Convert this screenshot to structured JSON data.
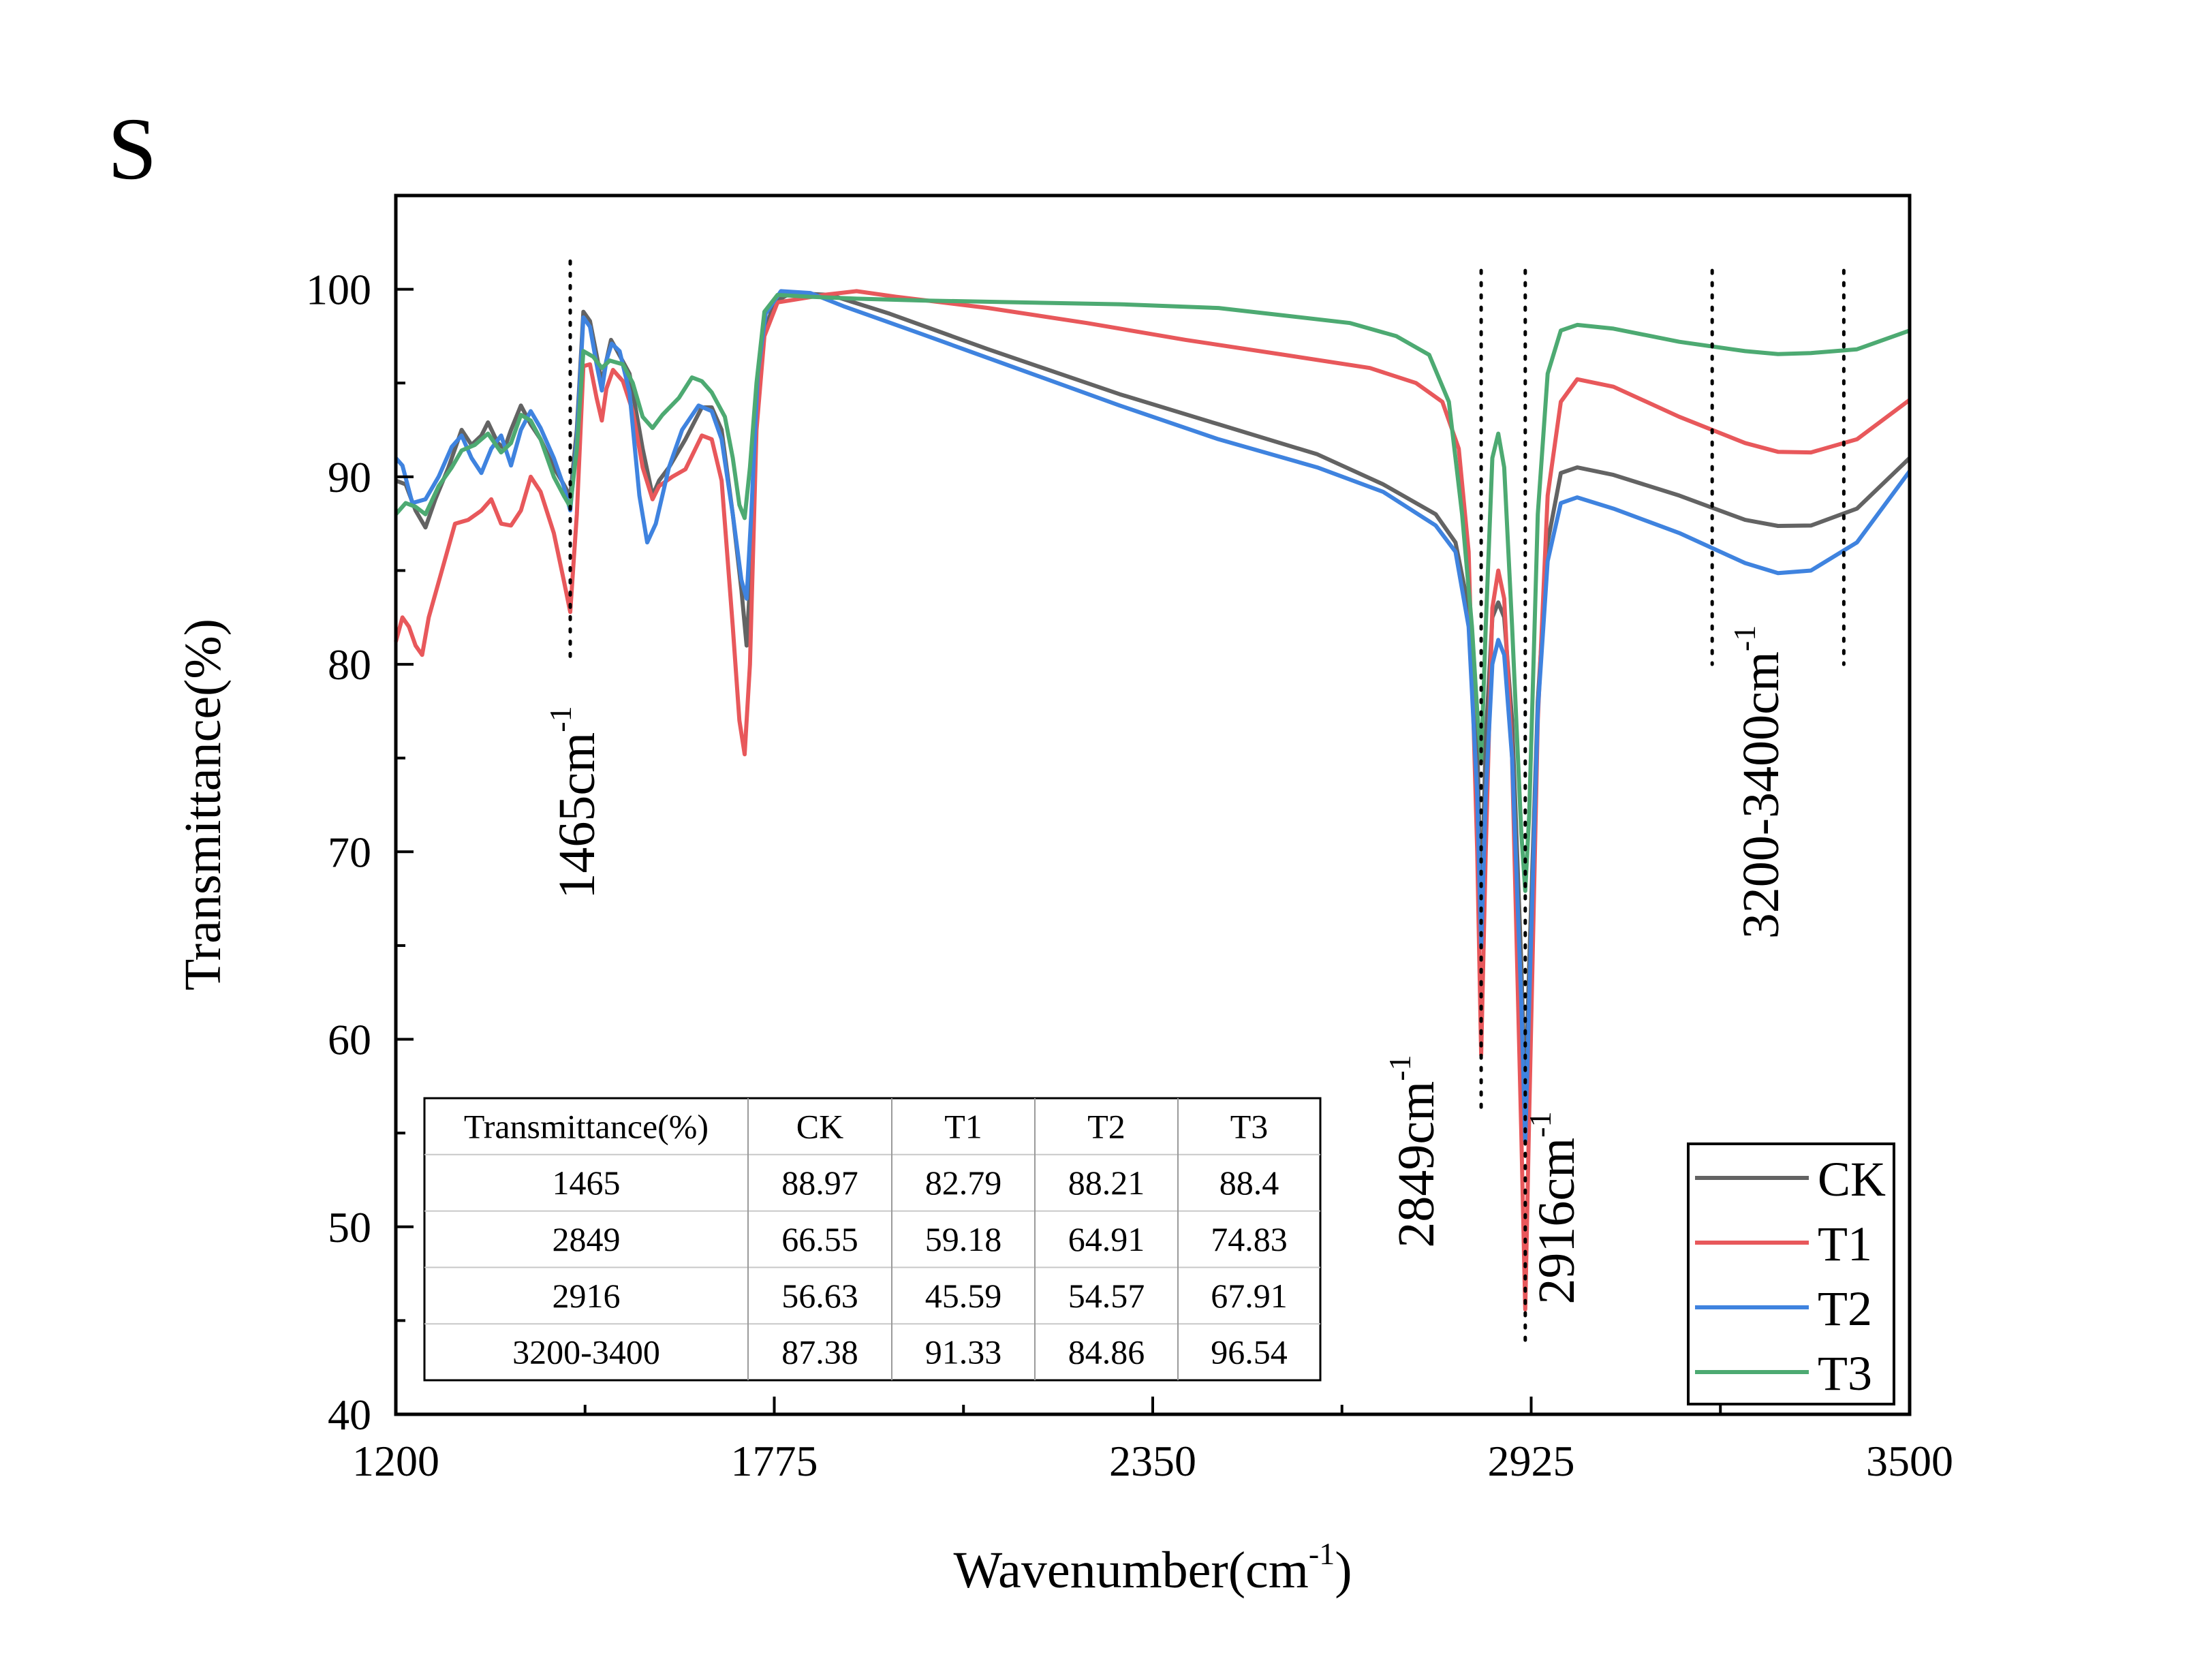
{
  "panel_label": "S",
  "chart_data": {
    "type": "line",
    "xlabel": "Wavenumber(cm",
    "xlabel_sup": "-1",
    "xlabel_end": ")",
    "ylabel": "Transmittance(%)",
    "xlim": [
      1200,
      3500
    ],
    "ylim": [
      40,
      105
    ],
    "x_ticks": [
      1200,
      1775,
      2350,
      2925,
      3500
    ],
    "y_ticks": [
      40,
      50,
      60,
      70,
      80,
      90,
      100
    ],
    "grid": false,
    "legend_position": "bottom-right",
    "series": [
      {
        "name": "CK",
        "color": "#636363",
        "points": [
          [
            1200,
            89.8
          ],
          [
            1215,
            89.6
          ],
          [
            1230,
            88.2
          ],
          [
            1245,
            87.3
          ],
          [
            1260,
            88.8
          ],
          [
            1280,
            90.5
          ],
          [
            1300,
            92.5
          ],
          [
            1315,
            91.7
          ],
          [
            1330,
            92.2
          ],
          [
            1340,
            92.9
          ],
          [
            1355,
            91.8
          ],
          [
            1365,
            91.5
          ],
          [
            1375,
            92.5
          ],
          [
            1390,
            93.8
          ],
          [
            1405,
            92.8
          ],
          [
            1420,
            92.0
          ],
          [
            1440,
            90.5
          ],
          [
            1455,
            89.6
          ],
          [
            1465,
            88.97
          ],
          [
            1475,
            92.5
          ],
          [
            1485,
            98.8
          ],
          [
            1495,
            98.3
          ],
          [
            1505,
            96.5
          ],
          [
            1513,
            95.0
          ],
          [
            1520,
            96.2
          ],
          [
            1527,
            97.3
          ],
          [
            1535,
            96.8
          ],
          [
            1555,
            95.5
          ],
          [
            1575,
            91.5
          ],
          [
            1590,
            89.0
          ],
          [
            1600,
            89.8
          ],
          [
            1615,
            90.5
          ],
          [
            1640,
            92.0
          ],
          [
            1665,
            93.7
          ],
          [
            1680,
            93.7
          ],
          [
            1695,
            92.5
          ],
          [
            1712,
            88.0
          ],
          [
            1725,
            84.0
          ],
          [
            1733,
            81.0
          ],
          [
            1740,
            85.5
          ],
          [
            1748,
            93.0
          ],
          [
            1758,
            97.5
          ],
          [
            1775,
            99.3
          ],
          [
            1800,
            99.8
          ],
          [
            1860,
            99.7
          ],
          [
            1950,
            98.7
          ],
          [
            2100,
            96.8
          ],
          [
            2300,
            94.4
          ],
          [
            2450,
            92.8
          ],
          [
            2600,
            91.2
          ],
          [
            2700,
            89.6
          ],
          [
            2780,
            88.0
          ],
          [
            2810,
            86.5
          ],
          [
            2830,
            83.0
          ],
          [
            2843,
            76.0
          ],
          [
            2849,
            66.55
          ],
          [
            2856,
            76.0
          ],
          [
            2866,
            82.5
          ],
          [
            2875,
            83.3
          ],
          [
            2884,
            82.5
          ],
          [
            2896,
            77.0
          ],
          [
            2910,
            64.0
          ],
          [
            2916,
            56.63
          ],
          [
            2922,
            64.0
          ],
          [
            2935,
            78.0
          ],
          [
            2950,
            86.5
          ],
          [
            2970,
            90.2
          ],
          [
            2995,
            90.5
          ],
          [
            3050,
            90.1
          ],
          [
            3150,
            89.0
          ],
          [
            3250,
            87.7
          ],
          [
            3300,
            87.38
          ],
          [
            3350,
            87.4
          ],
          [
            3420,
            88.3
          ],
          [
            3500,
            91.0
          ]
        ]
      },
      {
        "name": "T1",
        "color": "#e8585b",
        "points": [
          [
            1200,
            81.2
          ],
          [
            1210,
            82.5
          ],
          [
            1220,
            82.0
          ],
          [
            1230,
            81.0
          ],
          [
            1240,
            80.5
          ],
          [
            1250,
            82.5
          ],
          [
            1270,
            85.0
          ],
          [
            1290,
            87.5
          ],
          [
            1310,
            87.7
          ],
          [
            1330,
            88.2
          ],
          [
            1345,
            88.8
          ],
          [
            1360,
            87.5
          ],
          [
            1375,
            87.4
          ],
          [
            1390,
            88.2
          ],
          [
            1405,
            90.0
          ],
          [
            1420,
            89.2
          ],
          [
            1440,
            87.0
          ],
          [
            1455,
            84.5
          ],
          [
            1465,
            82.79
          ],
          [
            1475,
            88.0
          ],
          [
            1485,
            95.9
          ],
          [
            1495,
            96.0
          ],
          [
            1505,
            94.2
          ],
          [
            1513,
            93.0
          ],
          [
            1520,
            94.7
          ],
          [
            1530,
            95.7
          ],
          [
            1545,
            95.1
          ],
          [
            1560,
            93.5
          ],
          [
            1575,
            90.5
          ],
          [
            1590,
            88.8
          ],
          [
            1600,
            89.5
          ],
          [
            1620,
            90.0
          ],
          [
            1640,
            90.4
          ],
          [
            1665,
            92.2
          ],
          [
            1680,
            92.0
          ],
          [
            1695,
            89.8
          ],
          [
            1712,
            82.0
          ],
          [
            1722,
            77.0
          ],
          [
            1730,
            75.2
          ],
          [
            1738,
            80.0
          ],
          [
            1748,
            92.5
          ],
          [
            1760,
            97.5
          ],
          [
            1780,
            99.3
          ],
          [
            1850,
            99.7
          ],
          [
            1900,
            99.9
          ],
          [
            1960,
            99.6
          ],
          [
            2100,
            99.0
          ],
          [
            2250,
            98.2
          ],
          [
            2400,
            97.3
          ],
          [
            2550,
            96.5
          ],
          [
            2680,
            95.8
          ],
          [
            2750,
            95.0
          ],
          [
            2790,
            94.0
          ],
          [
            2815,
            91.5
          ],
          [
            2830,
            86.0
          ],
          [
            2843,
            70.0
          ],
          [
            2849,
            59.18
          ],
          [
            2856,
            70.0
          ],
          [
            2866,
            83.0
          ],
          [
            2875,
            85.0
          ],
          [
            2884,
            83.5
          ],
          [
            2896,
            75.0
          ],
          [
            2910,
            55.0
          ],
          [
            2916,
            45.59
          ],
          [
            2922,
            56.0
          ],
          [
            2935,
            77.0
          ],
          [
            2950,
            89.0
          ],
          [
            2970,
            94.0
          ],
          [
            2995,
            95.2
          ],
          [
            3050,
            94.8
          ],
          [
            3150,
            93.2
          ],
          [
            3250,
            91.8
          ],
          [
            3300,
            91.33
          ],
          [
            3350,
            91.3
          ],
          [
            3420,
            92.0
          ],
          [
            3500,
            94.1
          ]
        ]
      },
      {
        "name": "T2",
        "color": "#3f83df",
        "points": [
          [
            1200,
            91.0
          ],
          [
            1210,
            90.6
          ],
          [
            1225,
            88.6
          ],
          [
            1245,
            88.8
          ],
          [
            1265,
            90.0
          ],
          [
            1285,
            91.6
          ],
          [
            1300,
            92.2
          ],
          [
            1315,
            91.0
          ],
          [
            1330,
            90.2
          ],
          [
            1345,
            91.5
          ],
          [
            1360,
            92.2
          ],
          [
            1375,
            90.6
          ],
          [
            1390,
            92.5
          ],
          [
            1405,
            93.5
          ],
          [
            1420,
            92.6
          ],
          [
            1440,
            91.0
          ],
          [
            1455,
            89.5
          ],
          [
            1465,
            88.21
          ],
          [
            1475,
            92.0
          ],
          [
            1485,
            98.5
          ],
          [
            1495,
            98.0
          ],
          [
            1505,
            96.0
          ],
          [
            1513,
            94.6
          ],
          [
            1520,
            96.2
          ],
          [
            1528,
            97.1
          ],
          [
            1540,
            96.7
          ],
          [
            1555,
            94.5
          ],
          [
            1570,
            89.0
          ],
          [
            1582,
            86.5
          ],
          [
            1595,
            87.5
          ],
          [
            1615,
            90.5
          ],
          [
            1635,
            92.5
          ],
          [
            1660,
            93.8
          ],
          [
            1680,
            93.5
          ],
          [
            1695,
            92.0
          ],
          [
            1712,
            88.0
          ],
          [
            1725,
            84.5
          ],
          [
            1733,
            83.5
          ],
          [
            1740,
            88.0
          ],
          [
            1750,
            95.5
          ],
          [
            1762,
            98.7
          ],
          [
            1785,
            99.9
          ],
          [
            1830,
            99.8
          ],
          [
            1880,
            99.1
          ],
          [
            2000,
            97.6
          ],
          [
            2150,
            95.7
          ],
          [
            2300,
            93.8
          ],
          [
            2450,
            92.0
          ],
          [
            2600,
            90.5
          ],
          [
            2700,
            89.2
          ],
          [
            2780,
            87.4
          ],
          [
            2810,
            86.0
          ],
          [
            2830,
            82.0
          ],
          [
            2843,
            73.0
          ],
          [
            2849,
            64.91
          ],
          [
            2856,
            73.0
          ],
          [
            2866,
            80.0
          ],
          [
            2875,
            81.3
          ],
          [
            2884,
            80.5
          ],
          [
            2896,
            75.0
          ],
          [
            2910,
            62.0
          ],
          [
            2916,
            54.57
          ],
          [
            2922,
            62.0
          ],
          [
            2935,
            77.5
          ],
          [
            2950,
            85.5
          ],
          [
            2970,
            88.6
          ],
          [
            2995,
            88.9
          ],
          [
            3050,
            88.3
          ],
          [
            3150,
            87.0
          ],
          [
            3250,
            85.4
          ],
          [
            3300,
            84.86
          ],
          [
            3350,
            85.0
          ],
          [
            3420,
            86.5
          ],
          [
            3500,
            90.3
          ]
        ]
      },
      {
        "name": "T3",
        "color": "#4daa72",
        "points": [
          [
            1200,
            88.0
          ],
          [
            1215,
            88.6
          ],
          [
            1230,
            88.4
          ],
          [
            1245,
            88.0
          ],
          [
            1265,
            89.5
          ],
          [
            1285,
            90.5
          ],
          [
            1300,
            91.4
          ],
          [
            1320,
            91.7
          ],
          [
            1340,
            92.3
          ],
          [
            1360,
            91.3
          ],
          [
            1375,
            91.8
          ],
          [
            1390,
            93.3
          ],
          [
            1405,
            93.0
          ],
          [
            1420,
            92.0
          ],
          [
            1440,
            90.0
          ],
          [
            1455,
            89.0
          ],
          [
            1465,
            88.4
          ],
          [
            1475,
            91.5
          ],
          [
            1485,
            96.7
          ],
          [
            1500,
            96.4
          ],
          [
            1513,
            95.8
          ],
          [
            1525,
            96.2
          ],
          [
            1545,
            96.0
          ],
          [
            1560,
            95.0
          ],
          [
            1575,
            93.2
          ],
          [
            1590,
            92.6
          ],
          [
            1605,
            93.3
          ],
          [
            1630,
            94.2
          ],
          [
            1650,
            95.3
          ],
          [
            1665,
            95.1
          ],
          [
            1680,
            94.5
          ],
          [
            1700,
            93.2
          ],
          [
            1712,
            91.0
          ],
          [
            1722,
            88.5
          ],
          [
            1730,
            87.8
          ],
          [
            1738,
            90.5
          ],
          [
            1748,
            95.0
          ],
          [
            1760,
            98.8
          ],
          [
            1780,
            99.7
          ],
          [
            1830,
            99.6
          ],
          [
            1900,
            99.5
          ],
          [
            2000,
            99.4
          ],
          [
            2150,
            99.3
          ],
          [
            2300,
            99.2
          ],
          [
            2450,
            99.0
          ],
          [
            2550,
            98.6
          ],
          [
            2650,
            98.2
          ],
          [
            2720,
            97.5
          ],
          [
            2770,
            96.5
          ],
          [
            2800,
            94.0
          ],
          [
            2820,
            88.0
          ],
          [
            2835,
            82.0
          ],
          [
            2843,
            77.5
          ],
          [
            2849,
            74.83
          ],
          [
            2856,
            82.0
          ],
          [
            2866,
            91.0
          ],
          [
            2875,
            92.3
          ],
          [
            2884,
            90.5
          ],
          [
            2896,
            82.0
          ],
          [
            2910,
            71.0
          ],
          [
            2916,
            67.91
          ],
          [
            2922,
            72.0
          ],
          [
            2935,
            88.0
          ],
          [
            2950,
            95.5
          ],
          [
            2970,
            97.8
          ],
          [
            2995,
            98.1
          ],
          [
            3050,
            97.9
          ],
          [
            3150,
            97.2
          ],
          [
            3250,
            96.7
          ],
          [
            3300,
            96.54
          ],
          [
            3350,
            96.6
          ],
          [
            3420,
            96.8
          ],
          [
            3500,
            97.8
          ]
        ]
      }
    ],
    "annotations": [
      {
        "text": "1465cm",
        "sup": "-1",
        "x": 1465
      },
      {
        "text": "2849cm",
        "sup": "-1",
        "x": 2849
      },
      {
        "text": "2916cm",
        "sup": "-1",
        "x": 2916
      },
      {
        "text": "3200-3400cm",
        "sup": "-1",
        "x_range": [
          3200,
          3400
        ]
      }
    ],
    "table": {
      "header": [
        "Transmittance(%)",
        "CK",
        "T1",
        "T2",
        "T3"
      ],
      "rows": [
        [
          "1465",
          "88.97",
          "82.79",
          "88.21",
          "88.4"
        ],
        [
          "2849",
          "66.55",
          "59.18",
          "64.91",
          "74.83"
        ],
        [
          "2916",
          "56.63",
          "45.59",
          "54.57",
          "67.91"
        ],
        [
          "3200-3400",
          "87.38",
          "91.33",
          "84.86",
          "96.54"
        ]
      ]
    }
  }
}
